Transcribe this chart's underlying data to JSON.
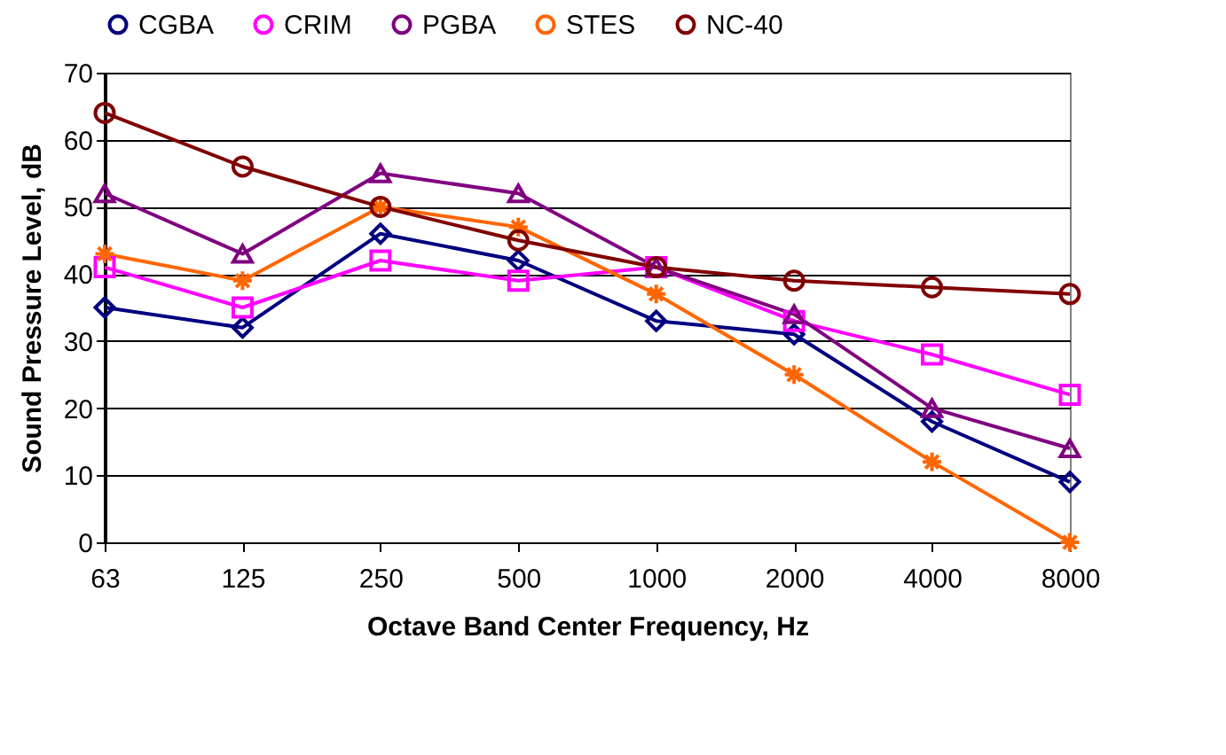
{
  "chart_data": {
    "type": "line",
    "xlabel": "Octave Band Center Frequency, Hz",
    "ylabel": "Sound Pressure Level, dB",
    "categories": [
      "63",
      "125",
      "250",
      "500",
      "1000",
      "2000",
      "4000",
      "8000"
    ],
    "series": [
      {
        "name": "CGBA",
        "color": "#000080",
        "marker": "diamond",
        "values": [
          35,
          32,
          46,
          42,
          33,
          31,
          18,
          9
        ]
      },
      {
        "name": "CRIM",
        "color": "#ff00ff",
        "marker": "square",
        "values": [
          41,
          35,
          42,
          39,
          41,
          33,
          28,
          22
        ]
      },
      {
        "name": "PGBA",
        "color": "#800080",
        "marker": "triangle",
        "values": [
          52,
          43,
          55,
          52,
          41,
          34,
          20,
          14
        ]
      },
      {
        "name": "STES",
        "color": "#ff6600",
        "marker": "cross",
        "values": [
          43,
          39,
          50,
          47,
          37,
          25,
          12,
          0
        ]
      },
      {
        "name": "NC-40",
        "color": "#800000",
        "marker": "circle",
        "values": [
          64,
          56,
          50,
          45,
          41,
          39,
          38,
          37
        ]
      }
    ],
    "ylim": [
      0,
      70
    ],
    "yticks": [
      0,
      10,
      20,
      30,
      40,
      50,
      60,
      70
    ],
    "grid": "y",
    "legend": "top"
  }
}
